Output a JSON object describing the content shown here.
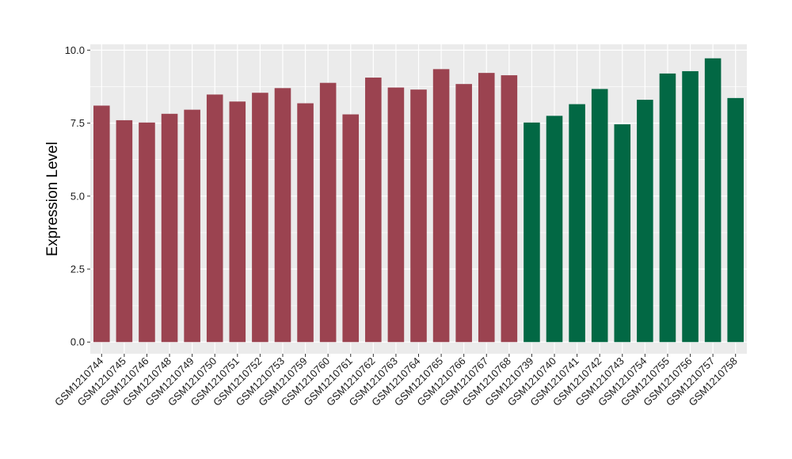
{
  "chart_data": {
    "type": "bar",
    "ylabel": "Expression Level",
    "xlabel": "",
    "ylim": [
      -0.4,
      10.2
    ],
    "yticks": [
      0.0,
      2.5,
      5.0,
      7.5,
      10.0
    ],
    "ytick_labels": [
      "0.0",
      "2.5",
      "5.0",
      "7.5",
      "10.0"
    ],
    "grid": true,
    "categories": [
      "GSM1210744",
      "GSM1210745",
      "GSM1210746",
      "GSM1210748",
      "GSM1210749",
      "GSM1210750",
      "GSM1210751",
      "GSM1210752",
      "GSM1210753",
      "GSM1210759",
      "GSM1210760",
      "GSM1210761",
      "GSM1210762",
      "GSM1210763",
      "GSM1210764",
      "GSM1210765",
      "GSM1210766",
      "GSM1210767",
      "GSM1210768",
      "GSM1210739",
      "GSM1210740",
      "GSM1210741",
      "GSM1210742",
      "GSM1210743",
      "GSM1210754",
      "GSM1210755",
      "GSM1210756",
      "GSM1210757",
      "GSM1210758"
    ],
    "values": [
      8.1,
      7.6,
      7.52,
      7.82,
      7.96,
      8.48,
      8.24,
      8.54,
      8.7,
      8.18,
      8.88,
      7.8,
      9.06,
      8.72,
      8.65,
      9.35,
      8.84,
      9.22,
      9.14,
      7.52,
      7.75,
      8.15,
      8.67,
      7.46,
      8.3,
      9.2,
      9.28,
      9.72,
      8.36
    ],
    "groups": [
      0,
      0,
      0,
      0,
      0,
      0,
      0,
      0,
      0,
      0,
      0,
      0,
      0,
      0,
      0,
      0,
      0,
      0,
      0,
      1,
      1,
      1,
      1,
      1,
      1,
      1,
      1,
      1,
      1
    ],
    "colors": {
      "group_0": "#9b4350",
      "group_1": "#026844",
      "panel_background": "#ebebeb",
      "grid_line": "#ffffff"
    }
  }
}
